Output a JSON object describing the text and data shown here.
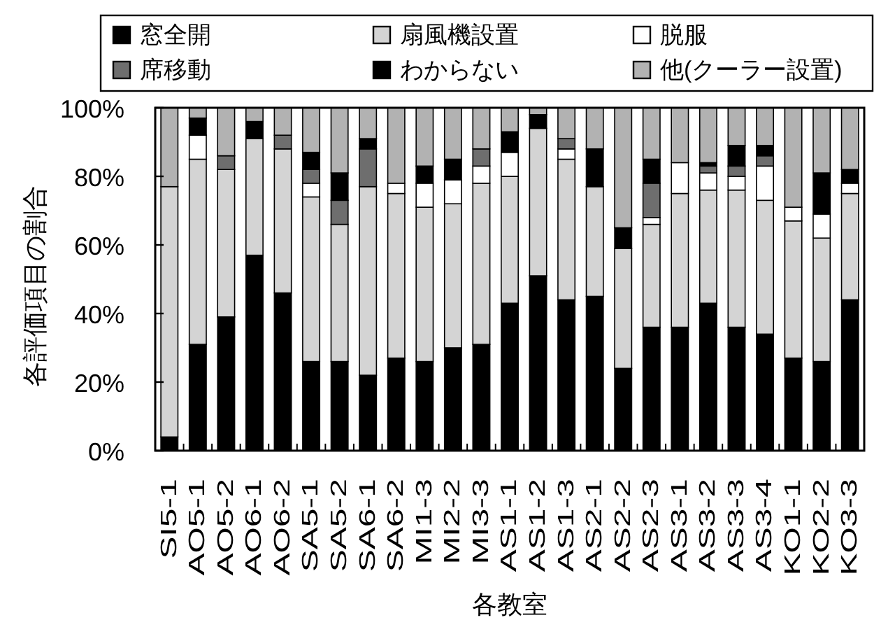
{
  "chart_data": {
    "type": "bar",
    "stacked": true,
    "xlabel": "各教室",
    "ylabel": "各評価項目の割合",
    "legend": "top",
    "categories": [
      "SI5-1",
      "AO5-1",
      "AO5-2",
      "AO6-1",
      "AO6-2",
      "SA5-1",
      "SA5-2",
      "SA6-1",
      "SA6-2",
      "MI1-3",
      "MI2-2",
      "MI3-3",
      "AS1-1",
      "AS1-2",
      "AS1-3",
      "AS2-1",
      "AS2-2",
      "AS2-3",
      "AS3-1",
      "AS3-2",
      "AS3-3",
      "AS3-4",
      "KO1-1",
      "KO2-2",
      "KO3-3"
    ],
    "ylim": [
      0,
      100
    ],
    "yticks": [
      {
        "value": 0,
        "label": "0%"
      },
      {
        "value": 20,
        "label": "20%"
      },
      {
        "value": 40,
        "label": "40%"
      },
      {
        "value": 60,
        "label": "60%"
      },
      {
        "value": 80,
        "label": "80%"
      },
      {
        "value": 100,
        "label": "100%"
      }
    ],
    "series": [
      {
        "name": "窓全開",
        "color": "#000000",
        "values": [
          4,
          31,
          39,
          57,
          46,
          26,
          26,
          22,
          27,
          26,
          30,
          31,
          43,
          51,
          44,
          45,
          24,
          36,
          36,
          43,
          36,
          34,
          27,
          26,
          44
        ]
      },
      {
        "name": "扇風機設置",
        "color": "#d4d4d4",
        "values": [
          73,
          54,
          43,
          34,
          42,
          48,
          40,
          55,
          48,
          45,
          42,
          47,
          37,
          43,
          41,
          32,
          35,
          30,
          39,
          33,
          40,
          39,
          40,
          36,
          31
        ]
      },
      {
        "name": "脱服",
        "color": "#ffffff",
        "values": [
          0,
          7,
          0,
          0,
          0,
          4,
          0,
          0,
          3,
          7,
          7,
          5,
          7,
          0,
          3,
          0,
          0,
          2,
          9,
          5,
          4,
          10,
          4,
          7,
          3
        ]
      },
      {
        "name": "席移動",
        "color": "#6e6e6e",
        "values": [
          0,
          0,
          4,
          0,
          4,
          4,
          7,
          11,
          0,
          0,
          0,
          5,
          0,
          0,
          3,
          0,
          0,
          10,
          0,
          2,
          3,
          3,
          0,
          0,
          0
        ]
      },
      {
        "name": "わからない",
        "color": "#000000",
        "values": [
          0,
          5,
          0,
          5,
          0,
          5,
          8,
          3,
          0,
          5,
          6,
          0,
          6,
          4,
          0,
          11,
          6,
          7,
          0,
          1,
          6,
          3,
          0,
          12,
          4
        ]
      },
      {
        "name": "他(クーラー設置)",
        "color": "#b2b2b2",
        "values": [
          23,
          3,
          14,
          4,
          8,
          13,
          19,
          9,
          22,
          17,
          15,
          12,
          7,
          2,
          9,
          12,
          35,
          15,
          16,
          16,
          11,
          11,
          29,
          19,
          18
        ]
      }
    ]
  }
}
